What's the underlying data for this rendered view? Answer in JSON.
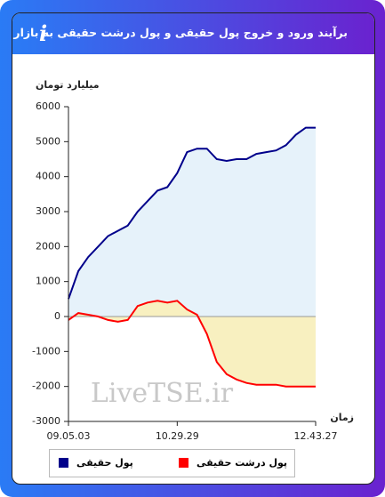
{
  "header": {
    "title": "برآیند ورود و خروج پول حقیقی و پول درشت حقیقی به بازار",
    "info_icon": "i"
  },
  "chart_data": {
    "type": "line",
    "area": true,
    "y_label": "میلیارد تومان",
    "x_label": "زمان",
    "watermark": "LiveTSE.ir",
    "categories": [
      "09.05.03",
      null,
      null,
      null,
      null,
      null,
      null,
      null,
      null,
      null,
      null,
      "10.29.29",
      null,
      null,
      null,
      null,
      null,
      null,
      null,
      null,
      null,
      null,
      null,
      null,
      null,
      "12.43.27"
    ],
    "ylim": [
      -3000,
      6000
    ],
    "yticks": [
      -3000,
      -2000,
      -1000,
      0,
      1000,
      2000,
      3000,
      4000,
      5000,
      6000
    ],
    "series": [
      {
        "name": "پول حقیقی",
        "color": "#00008b",
        "fill": "#e6f2fa",
        "values": [
          500,
          1300,
          1700,
          2000,
          2300,
          2450,
          2600,
          3000,
          3300,
          3600,
          3700,
          4100,
          4700,
          4800,
          4800,
          4500,
          4450,
          4500,
          4500,
          4650,
          4700,
          4750,
          4900,
          5200,
          5400,
          5400
        ]
      },
      {
        "name": "پول درشت حقیقی",
        "color": "#ff0000",
        "fill": "#f8f0c0",
        "values": [
          -100,
          100,
          50,
          0,
          -100,
          -150,
          -100,
          300,
          400,
          450,
          400,
          450,
          200,
          50,
          -500,
          -1300,
          -1650,
          -1800,
          -1900,
          -1950,
          -1950,
          -1950,
          -2000,
          -2000,
          -2000,
          -2000
        ]
      }
    ]
  }
}
